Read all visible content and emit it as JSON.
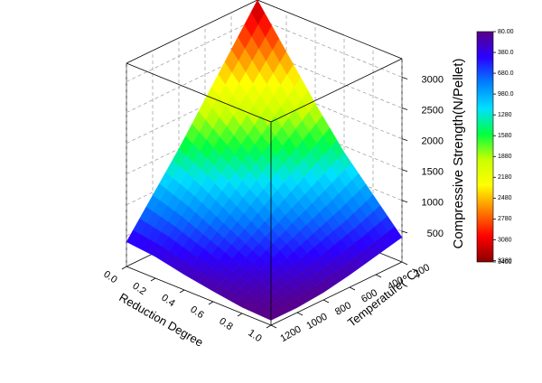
{
  "chart_data": {
    "type": "surface3d",
    "xlabel": "Reduction Degree",
    "ylabel": "Temperature(℃)",
    "zlabel": "Compressive Strength(N/Pellet)",
    "x": [
      0,
      0.2,
      0.4,
      0.6,
      0.8,
      1
    ],
    "y": [
      200,
      400,
      600,
      800,
      1000,
      1200
    ],
    "z": [
      [
        3300,
        2650,
        2000,
        1400,
        900,
        400
      ],
      [
        2700,
        2150,
        1650,
        1150,
        700,
        300
      ],
      [
        2100,
        1700,
        1300,
        900,
        550,
        200
      ],
      [
        1500,
        1250,
        950,
        650,
        380,
        120
      ],
      [
        950,
        800,
        600,
        400,
        220,
        80
      ],
      [
        400,
        350,
        250,
        170,
        100,
        80
      ]
    ],
    "xlim": [
      0,
      1
    ],
    "ylim": [
      200,
      1200
    ],
    "zlim": [
      0,
      3300
    ],
    "xticks": [
      {
        "value": 0,
        "label": "0.0"
      },
      0.2,
      0.4,
      0.6,
      0.8,
      {
        "value": 1,
        "label": "1.0"
      }
    ],
    "yticks": [
      200,
      400,
      600,
      800,
      1000,
      1200
    ],
    "zticks": [
      500,
      1000,
      1500,
      2000,
      2500,
      3000
    ],
    "grid": true,
    "colormap": [
      "#5a0087",
      "#2a00ff",
      "#0080ff",
      "#00e0ff",
      "#00ff40",
      "#c8ff00",
      "#ffff00",
      "#ff8000",
      "#ff0000",
      "#8a0000"
    ],
    "clim": [
      80,
      3400
    ],
    "cticks": [
      {
        "value": 80,
        "label": "80.00"
      },
      {
        "value": 380,
        "label": "380.0"
      },
      {
        "value": 680,
        "label": "680.0"
      },
      {
        "value": 980,
        "label": "980.0"
      },
      1280,
      1580,
      1880,
      2180,
      2480,
      2780,
      3080,
      3380,
      3400
    ]
  }
}
